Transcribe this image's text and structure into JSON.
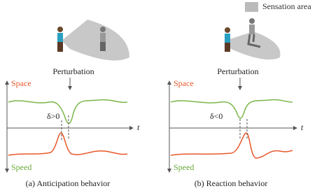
{
  "legend": {
    "label": "Sensation area"
  },
  "panels": [
    {
      "perturbation": "Perturbation",
      "space": "Space",
      "speed": "Speed",
      "time": "t",
      "delta": "δ>0",
      "caption": "(a) Anticipation behavior"
    },
    {
      "perturbation": "Perturbation",
      "space": "Space",
      "speed": "Speed",
      "time": "t",
      "delta": "δ<0",
      "caption": "(b) Reaction behavior"
    }
  ]
}
